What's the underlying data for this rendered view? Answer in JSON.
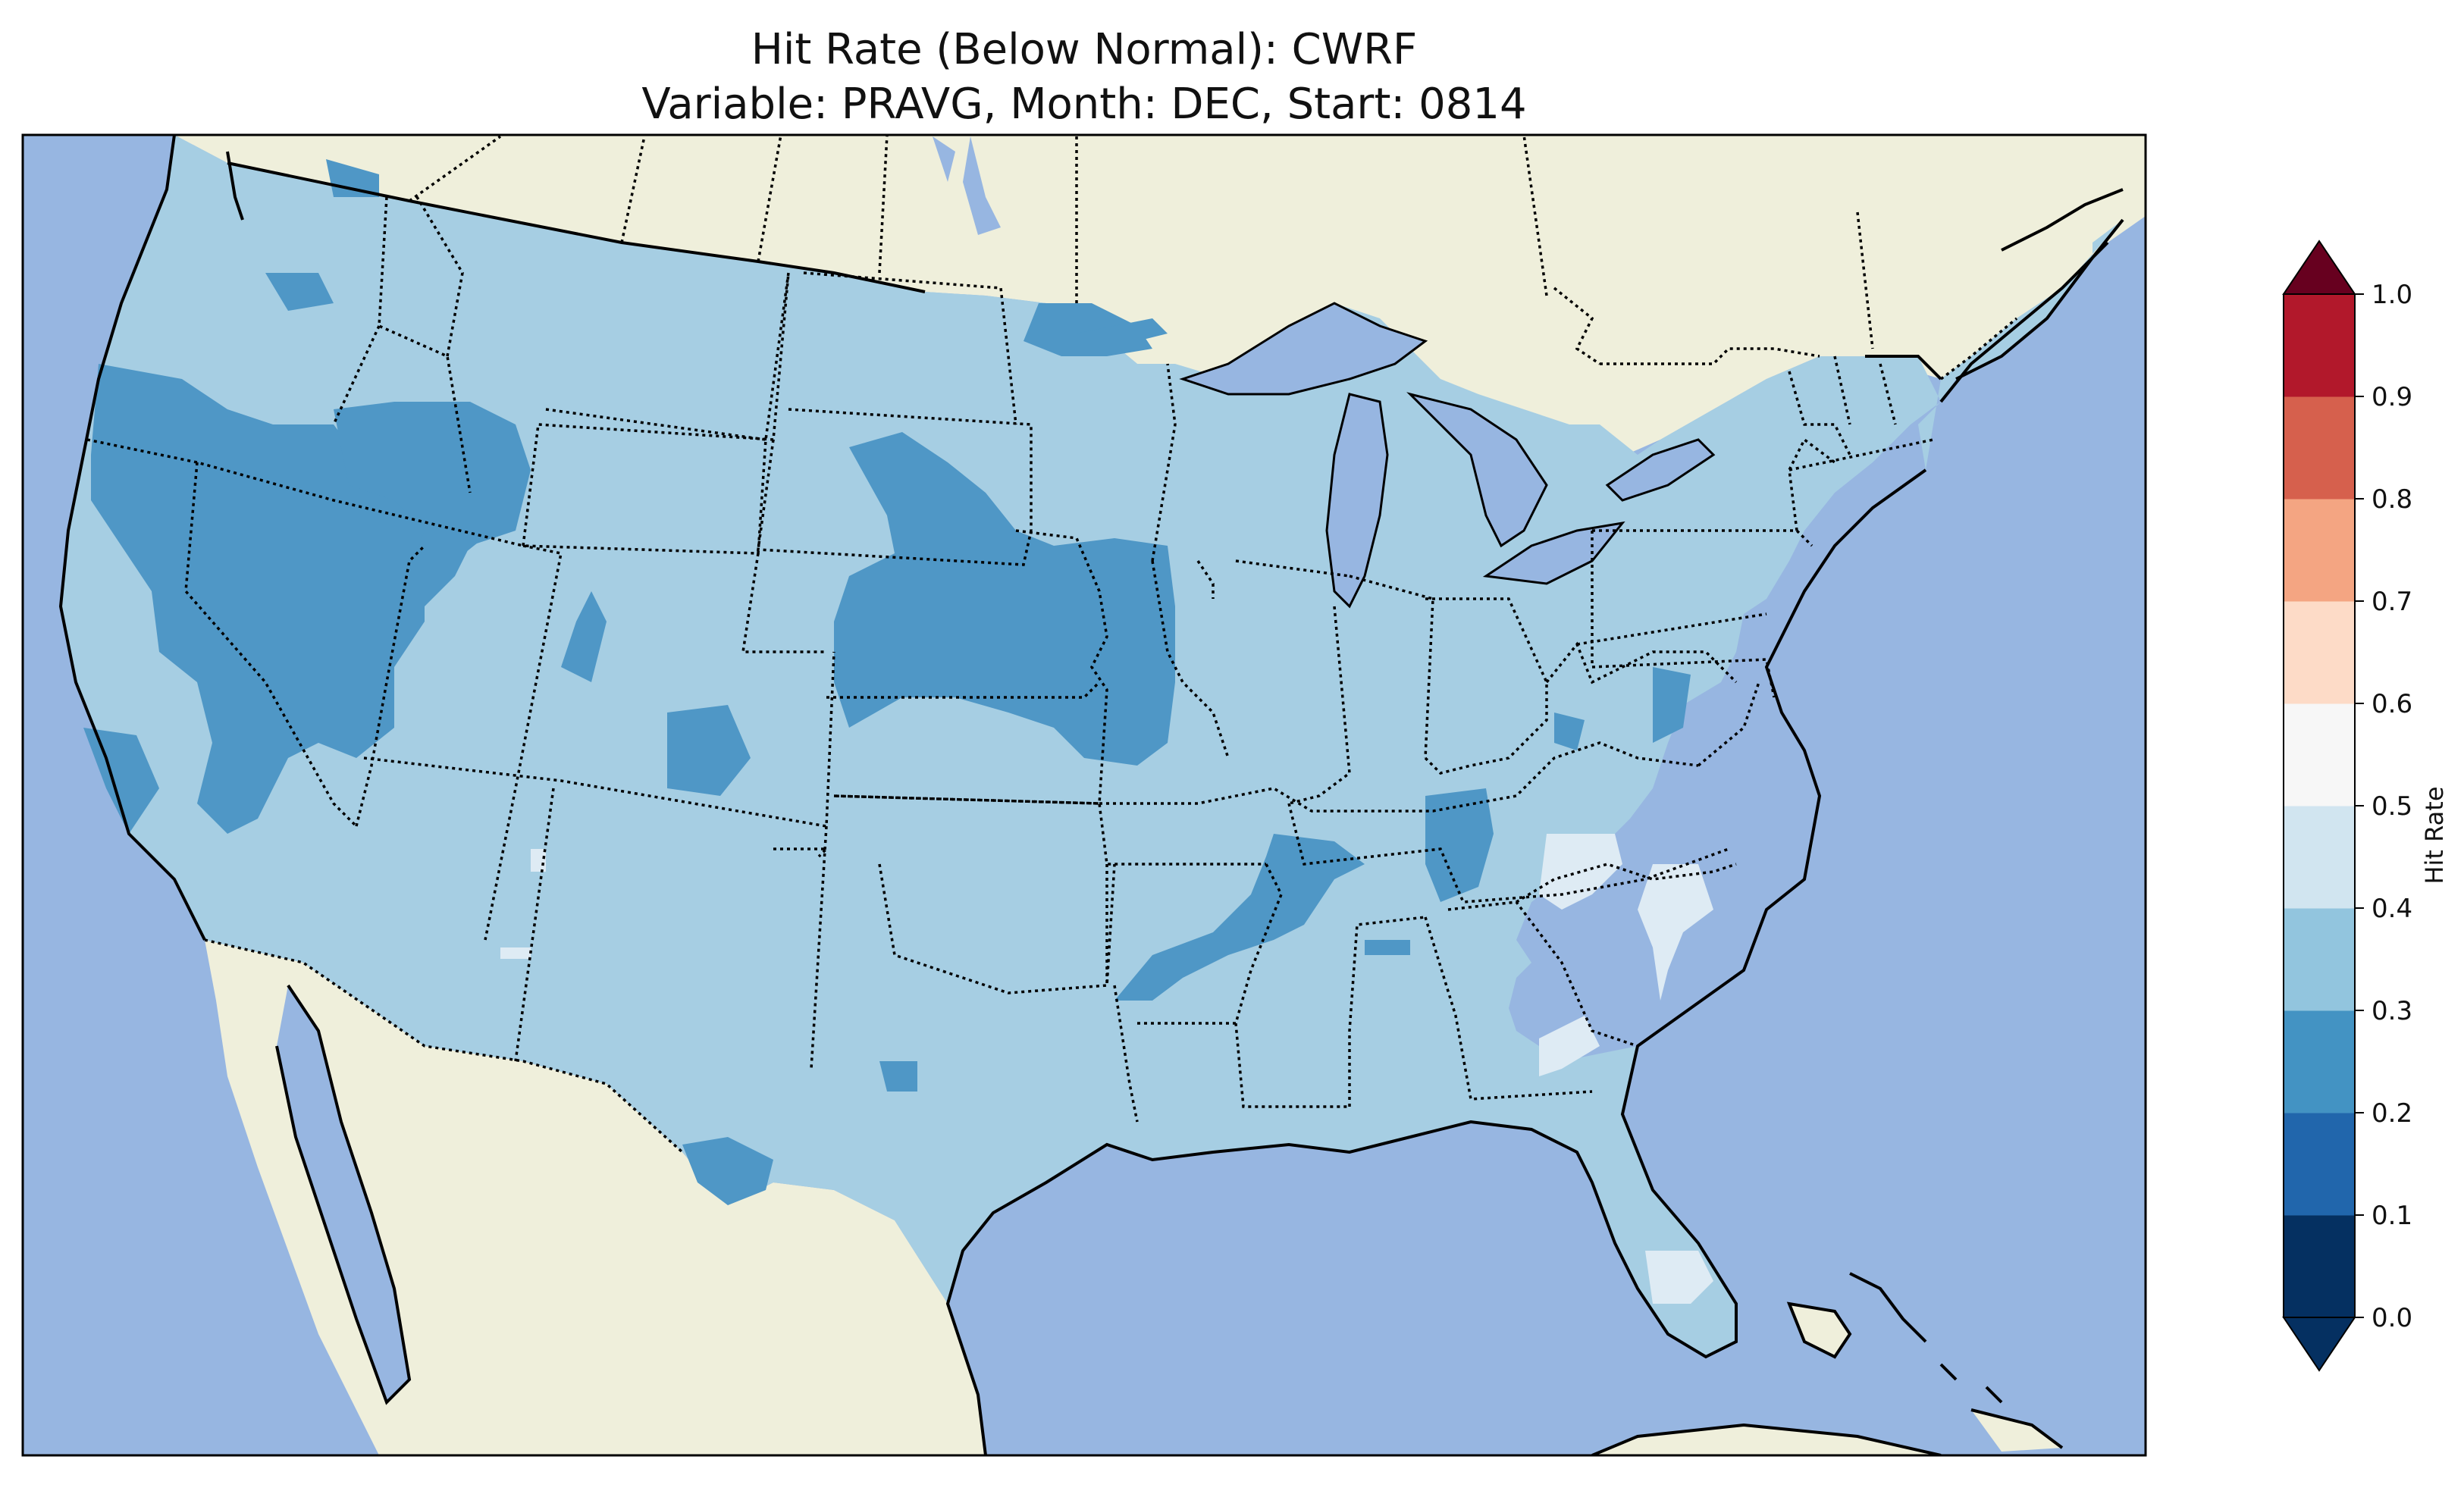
{
  "title": {
    "line1": "Hit Rate (Below Normal): CWRF",
    "line2": "Variable: PRAVG, Month: DEC, Start: 0814"
  },
  "colorbar": {
    "label": "Hit Rate",
    "ticks": [
      "0.0",
      "0.1",
      "0.2",
      "0.3",
      "0.4",
      "0.5",
      "0.6",
      "0.7",
      "0.8",
      "0.9",
      "1.0"
    ],
    "bin_colors": [
      "#053061",
      "#2166ac",
      "#4393c3",
      "#92c5de",
      "#d1e5f0",
      "#f7f7f7",
      "#fddbc7",
      "#f4a582",
      "#d6604d",
      "#b2182b",
      "#67001f"
    ],
    "under_color": "#053061",
    "over_color": "#67001f",
    "extend": "both"
  },
  "map": {
    "projection": "Lambert Conformal (CONUS)",
    "ocean_color": "#97b6e1",
    "land_color": "#efefdb",
    "field_color_0_3_to_0_4": "#a6cee3",
    "field_color_0_2_to_0_3": "#4f97c6",
    "field_color_0_4_to_0_5": "#deebf4",
    "state_borders": "dotted",
    "coastlines": "solid"
  }
}
